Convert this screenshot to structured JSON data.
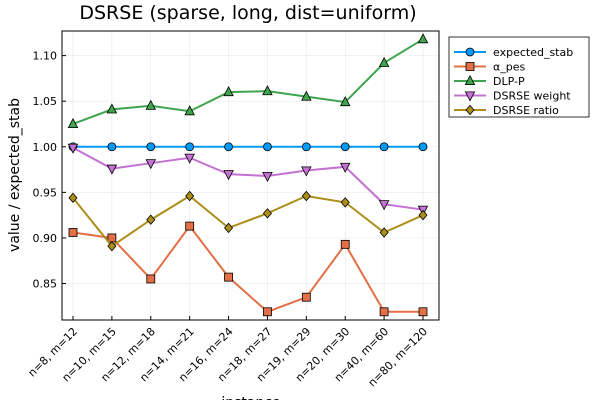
{
  "chart_data": {
    "type": "line",
    "title": "DSRSE (sparse, long, dist=uniform)",
    "xlabel": "instance",
    "ylabel": "value / expected_stab",
    "ylim": [
      0.81,
      1.127
    ],
    "yticks": [
      0.85,
      0.9,
      0.95,
      1.0,
      1.05,
      1.1
    ],
    "ytick_labels": [
      "0.85",
      "0.90",
      "0.95",
      "1.00",
      "1.05",
      "1.10"
    ],
    "categories": [
      "n=8, m=12",
      "n=10, m=15",
      "n=12, m=18",
      "n=14, m=21",
      "n=16, m=24",
      "n=18, m=27",
      "n=19, m=29",
      "n=20, m=30",
      "n=40, m=60",
      "n=80, m=120"
    ],
    "legend_position": "top-right-outside",
    "grid": true,
    "series": [
      {
        "name": "expected_stab",
        "color": "#009AFA",
        "marker": "circle",
        "values": [
          1.0,
          1.0,
          1.0,
          1.0,
          1.0,
          1.0,
          1.0,
          1.0,
          1.0,
          1.0
        ]
      },
      {
        "name": "α_pes",
        "color": "#E26F46",
        "marker": "square",
        "values": [
          0.906,
          0.9,
          0.855,
          0.913,
          0.857,
          0.819,
          0.835,
          0.893,
          0.819,
          0.819
        ]
      },
      {
        "name": "DLP-P",
        "color": "#3EA44E",
        "marker": "triangle-up",
        "values": [
          1.025,
          1.041,
          1.045,
          1.039,
          1.06,
          1.061,
          1.055,
          1.049,
          1.092,
          1.118
        ]
      },
      {
        "name": "DSRSE weight",
        "color": "#C371D2",
        "marker": "triangle-down",
        "values": [
          0.999,
          0.976,
          0.982,
          0.988,
          0.97,
          0.968,
          0.974,
          0.978,
          0.937,
          0.931
        ]
      },
      {
        "name": "DSRSE ratio",
        "color": "#AC8E18",
        "marker": "diamond",
        "values": [
          0.944,
          0.891,
          0.92,
          0.946,
          0.911,
          0.927,
          0.946,
          0.939,
          0.906,
          0.925
        ]
      }
    ]
  }
}
